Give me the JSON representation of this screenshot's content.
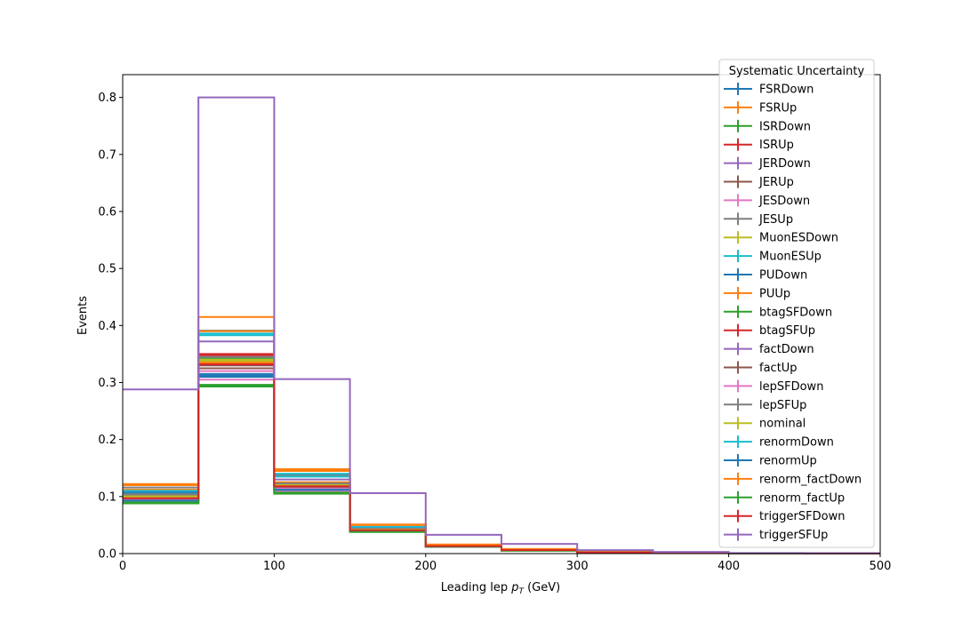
{
  "chart_data": {
    "type": "line",
    "drawstyle": "steps-mid",
    "xlabel_main": "Leading lep ",
    "xlabel_math_base": "p",
    "xlabel_math_sub": "T",
    "xlabel_unit": " (GeV)",
    "ylabel": "Events",
    "xlim": [
      0,
      500
    ],
    "ylim": [
      0,
      0.84
    ],
    "xticks": [
      0,
      100,
      200,
      300,
      400,
      500
    ],
    "xtick_labels": [
      "0",
      "100",
      "200",
      "300",
      "400",
      "500"
    ],
    "yticks": [
      0.0,
      0.1,
      0.2,
      0.3,
      0.4,
      0.5,
      0.6,
      0.7,
      0.8
    ],
    "ytick_labels": [
      "0.0",
      "0.1",
      "0.2",
      "0.3",
      "0.4",
      "0.5",
      "0.6",
      "0.7",
      "0.8"
    ],
    "grid": false,
    "legend_title": "Systematic Uncertainty",
    "legend_position": "top-right",
    "bin_edges": [
      0,
      50,
      100,
      150,
      200,
      250,
      300,
      350,
      400,
      450,
      500
    ],
    "series": [
      {
        "name": "FSRDown",
        "color": "#1f77b4",
        "values": [
          0.105,
          0.315,
          0.117,
          0.042,
          0.013,
          0.006,
          0.002,
          0.001,
          0.0005,
          0.0002
        ]
      },
      {
        "name": "FSRUp",
        "color": "#ff7f0e",
        "values": [
          0.112,
          0.335,
          0.125,
          0.044,
          0.014,
          0.007,
          0.002,
          0.001,
          0.0005,
          0.0002
        ]
      },
      {
        "name": "ISRDown",
        "color": "#2ca02c",
        "values": [
          0.09,
          0.343,
          0.108,
          0.04,
          0.012,
          0.006,
          0.002,
          0.001,
          0.0005,
          0.0002
        ]
      },
      {
        "name": "ISRUp",
        "color": "#d62728",
        "values": [
          0.1,
          0.348,
          0.12,
          0.042,
          0.013,
          0.006,
          0.002,
          0.001,
          0.0005,
          0.0002
        ]
      },
      {
        "name": "JERDown",
        "color": "#9467bd",
        "values": [
          0.098,
          0.345,
          0.118,
          0.041,
          0.013,
          0.006,
          0.002,
          0.001,
          0.0005,
          0.0002
        ]
      },
      {
        "name": "JERUp",
        "color": "#8c564b",
        "values": [
          0.101,
          0.325,
          0.115,
          0.041,
          0.013,
          0.006,
          0.002,
          0.001,
          0.0005,
          0.0002
        ]
      },
      {
        "name": "JESDown",
        "color": "#e377c2",
        "values": [
          0.094,
          0.305,
          0.11,
          0.04,
          0.012,
          0.006,
          0.002,
          0.001,
          0.0005,
          0.0002
        ]
      },
      {
        "name": "JESUp",
        "color": "#7f7f7f",
        "values": [
          0.116,
          0.391,
          0.138,
          0.046,
          0.015,
          0.007,
          0.002,
          0.001,
          0.0005,
          0.0002
        ]
      },
      {
        "name": "MuonESDown",
        "color": "#bcbd22",
        "values": [
          0.103,
          0.34,
          0.12,
          0.042,
          0.013,
          0.006,
          0.002,
          0.001,
          0.0005,
          0.0002
        ]
      },
      {
        "name": "MuonESUp",
        "color": "#17becf",
        "values": [
          0.104,
          0.386,
          0.14,
          0.046,
          0.014,
          0.007,
          0.002,
          0.001,
          0.0005,
          0.0002
        ]
      },
      {
        "name": "PUDown",
        "color": "#1f77b4",
        "values": [
          0.108,
          0.31,
          0.112,
          0.041,
          0.013,
          0.006,
          0.002,
          0.001,
          0.0005,
          0.0002
        ]
      },
      {
        "name": "PUUp",
        "color": "#ff7f0e",
        "values": [
          0.122,
          0.415,
          0.148,
          0.051,
          0.016,
          0.008,
          0.003,
          0.001,
          0.0005,
          0.0002
        ]
      },
      {
        "name": "btagSFDown",
        "color": "#2ca02c",
        "values": [
          0.088,
          0.293,
          0.105,
          0.038,
          0.012,
          0.005,
          0.002,
          0.001,
          0.0005,
          0.0002
        ]
      },
      {
        "name": "btagSFUp",
        "color": "#d62728",
        "values": [
          0.1,
          0.35,
          0.121,
          0.043,
          0.013,
          0.006,
          0.002,
          0.001,
          0.0005,
          0.0002
        ]
      },
      {
        "name": "factDown",
        "color": "#9467bd",
        "values": [
          0.098,
          0.372,
          0.13,
          0.045,
          0.014,
          0.007,
          0.002,
          0.001,
          0.0005,
          0.0002
        ]
      },
      {
        "name": "factUp",
        "color": "#8c564b",
        "values": [
          0.097,
          0.33,
          0.118,
          0.041,
          0.013,
          0.006,
          0.002,
          0.001,
          0.0005,
          0.0002
        ]
      },
      {
        "name": "lepSFDown",
        "color": "#e377c2",
        "values": [
          0.096,
          0.32,
          0.114,
          0.04,
          0.012,
          0.006,
          0.002,
          0.001,
          0.0005,
          0.0002
        ]
      },
      {
        "name": "lepSFUp",
        "color": "#7f7f7f",
        "values": [
          0.104,
          0.345,
          0.123,
          0.043,
          0.013,
          0.006,
          0.002,
          0.001,
          0.0005,
          0.0002
        ]
      },
      {
        "name": "nominal",
        "color": "#bcbd22",
        "values": [
          0.1,
          0.338,
          0.12,
          0.042,
          0.013,
          0.006,
          0.002,
          0.001,
          0.0005,
          0.0002
        ]
      },
      {
        "name": "renormDown",
        "color": "#17becf",
        "values": [
          0.11,
          0.383,
          0.135,
          0.047,
          0.014,
          0.007,
          0.002,
          0.001,
          0.0005,
          0.0002
        ]
      },
      {
        "name": "renormUp",
        "color": "#1f77b4",
        "values": [
          0.093,
          0.312,
          0.112,
          0.04,
          0.012,
          0.006,
          0.002,
          0.001,
          0.0005,
          0.0002
        ]
      },
      {
        "name": "renorm_factDown",
        "color": "#ff7f0e",
        "values": [
          0.12,
          0.39,
          0.145,
          0.05,
          0.015,
          0.008,
          0.003,
          0.001,
          0.0005,
          0.0002
        ]
      },
      {
        "name": "renorm_factUp",
        "color": "#2ca02c",
        "values": [
          0.089,
          0.296,
          0.106,
          0.038,
          0.012,
          0.005,
          0.002,
          0.001,
          0.0005,
          0.0002
        ]
      },
      {
        "name": "triggerSFDown",
        "color": "#d62728",
        "values": [
          0.097,
          0.332,
          0.118,
          0.041,
          0.013,
          0.006,
          0.002,
          0.001,
          0.0005,
          0.0002
        ]
      },
      {
        "name": "triggerSFUp",
        "color": "#9467bd",
        "values": [
          0.288,
          0.8,
          0.306,
          0.106,
          0.033,
          0.017,
          0.006,
          0.003,
          0.001,
          0.0005
        ]
      }
    ]
  }
}
